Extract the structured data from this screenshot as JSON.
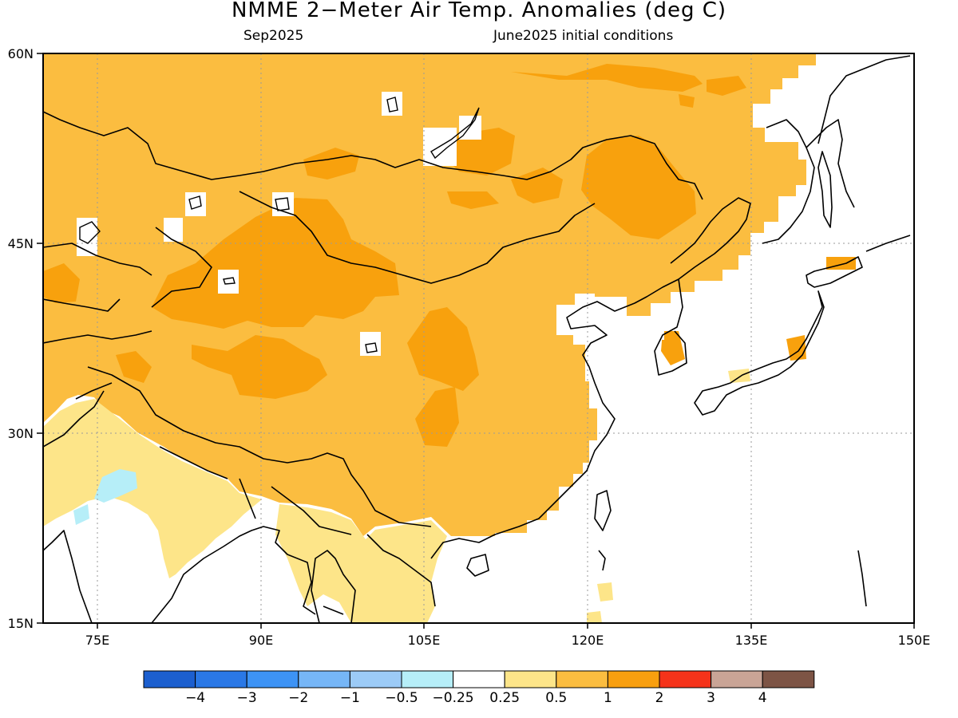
{
  "header": {
    "title": "NMME 2−Meter Air Temp. Anomalies (deg C)",
    "subtitle_left": "Sep2025",
    "subtitle_right": "June2025 initial conditions"
  },
  "map": {
    "lon_range": [
      70,
      150
    ],
    "lat_range": [
      15,
      60
    ],
    "lat_ticks": [
      {
        "value": 60,
        "label": "60N"
      },
      {
        "value": 45,
        "label": "45N"
      },
      {
        "value": 30,
        "label": "30N"
      },
      {
        "value": 15,
        "label": "15N"
      }
    ],
    "lon_ticks": [
      {
        "value": 75,
        "label": "75E"
      },
      {
        "value": 90,
        "label": "90E"
      },
      {
        "value": 105,
        "label": "105E"
      },
      {
        "value": 120,
        "label": "120E"
      },
      {
        "value": 135,
        "label": "135E"
      },
      {
        "value": 150,
        "label": "150E"
      }
    ],
    "background_anomaly_class": "0.5 to 1"
  },
  "colorbar": {
    "colors": [
      "#1c5fcf",
      "#2a78e6",
      "#3d93f5",
      "#76b6f7",
      "#9ccbf7",
      "#b6eef8",
      "#ffffff",
      "#fde589",
      "#fbbd40",
      "#f89f0f",
      "#f5331a",
      "#c9a496",
      "#7d5445"
    ],
    "labels": [
      "−4",
      "−3",
      "−2",
      "−1",
      "−0.5",
      "−0.25",
      "0.25",
      "0.5",
      "1",
      "2",
      "3",
      "4"
    ]
  },
  "colors": {
    "ocean": "#ffffff",
    "anom_0_5_to_1": "#fbbd40",
    "anom_1_to_2": "#f8a10d",
    "anom_0_25_to_0_5": "#fde589",
    "anom_neg_0_5_to_neg_0_25": "#b6eef8",
    "coast": "#000000"
  }
}
